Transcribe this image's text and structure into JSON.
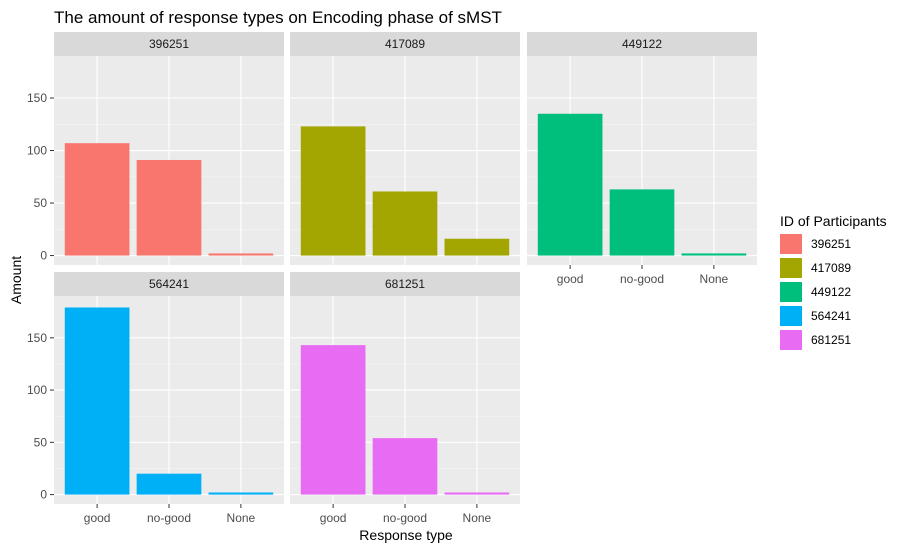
{
  "chart_data": {
    "type": "bar",
    "title": "The amount of response types on Encoding phase of sMST",
    "xlabel": "Response type",
    "ylabel": "Amount",
    "ylim": [
      -9,
      190
    ],
    "yticks": [
      0,
      50,
      100,
      150
    ],
    "categories": [
      "good",
      "no-good",
      "None"
    ],
    "grid": true,
    "legend": {
      "title": "ID of Participants",
      "placement": "right"
    },
    "series": [
      {
        "name": "396251",
        "color": "#F8766D",
        "values": [
          107,
          91,
          2
        ]
      },
      {
        "name": "417089",
        "color": "#A3A500",
        "values": [
          123,
          61,
          16
        ]
      },
      {
        "name": "449122",
        "color": "#00BF7D",
        "values": [
          135,
          63,
          2
        ]
      },
      {
        "name": "564241",
        "color": "#00B0F6",
        "values": [
          179,
          20,
          2
        ]
      },
      {
        "name": "681251",
        "color": "#E76BF3",
        "values": [
          143,
          54,
          2
        ]
      }
    ]
  }
}
